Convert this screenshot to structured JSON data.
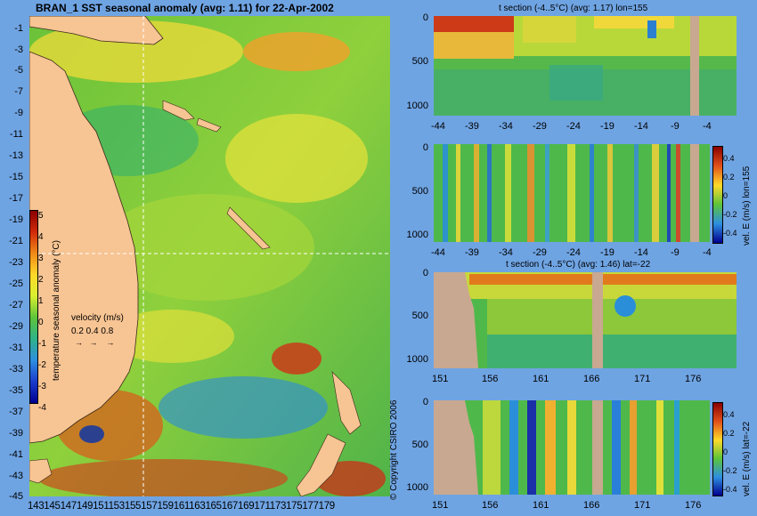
{
  "map": {
    "title": "BRAN_1 SST seasonal anomaly (avg: 1.11) for 22-Apr-2002",
    "lat_ticks": [
      "-1",
      "-3",
      "-5",
      "-7",
      "-9",
      "-11",
      "-13",
      "-15",
      "-17",
      "-19",
      "-21",
      "-23",
      "-25",
      "-27",
      "-29",
      "-31",
      "-33",
      "-35",
      "-37",
      "-39",
      "-41",
      "-43",
      "-45"
    ],
    "lon_ticks_text": "143145147149151153155157159161163165167169171173175177179",
    "colorbar": {
      "label": "temperature seasonal anomaly (°C)",
      "ticks": [
        "5",
        "4",
        "3",
        "2",
        "1",
        "0",
        "-1",
        "-2",
        "-3",
        "-4"
      ]
    },
    "velocity_legend": {
      "title": "velocity (m/s)",
      "scale": "0.2 0.4 0.8"
    },
    "copyright": "© Copyright CSIRO 2006"
  },
  "panels": [
    {
      "id": "t-lon",
      "title": "t section (-4..5°C) (avg: 1.17) lon=155",
      "x_ticks": [
        "-44",
        "-39",
        "-34",
        "-29",
        "-24",
        "-19",
        "-14",
        "-9",
        "-4"
      ],
      "y_ticks": [
        "0",
        "500",
        "1000"
      ]
    },
    {
      "id": "v-lon",
      "title": "",
      "x_ticks": [
        "-44",
        "-39",
        "-34",
        "-29",
        "-24",
        "-19",
        "-14",
        "-9",
        "-4"
      ],
      "y_ticks": [
        "0",
        "500",
        "1000"
      ],
      "cbar_label": "vel. E (m/s) lon=155",
      "cbar_ticks": [
        "0.4",
        "0.2",
        "0",
        "-0.2",
        "-0.4"
      ]
    },
    {
      "id": "t-lat",
      "title": "t section (-4..5°C) (avg: 1.46) lat=-22",
      "x_ticks": [
        "151",
        "156",
        "161",
        "166",
        "171",
        "176"
      ],
      "y_ticks": [
        "0",
        "500",
        "1000"
      ]
    },
    {
      "id": "v-lat",
      "title": "",
      "x_ticks": [
        "151",
        "156",
        "161",
        "166",
        "171",
        "176"
      ],
      "y_ticks": [
        "0",
        "500",
        "1000"
      ],
      "cbar_label": "vel. E (m/s) lat=-22",
      "cbar_ticks": [
        "0.4",
        "0.2",
        "0",
        "-0.2",
        "-0.4"
      ]
    }
  ],
  "chart_data": [
    {
      "type": "heatmap",
      "title": "BRAN_1 SST seasonal anomaly (avg: 1.11) for 22-Apr-2002",
      "xlabel": "",
      "ylabel": "",
      "xlim": [
        143,
        180
      ],
      "ylim": [
        -45,
        0
      ],
      "colorbar_range": [
        -4,
        5
      ],
      "colorbar_label": "temperature seasonal anomaly (°C)"
    },
    {
      "type": "heatmap",
      "title": "t section (-4..5°C) (avg: 1.17) lon=155",
      "xlim": [
        -45,
        0
      ],
      "ylim": [
        1050,
        0
      ]
    },
    {
      "type": "heatmap",
      "title": "",
      "xlim": [
        -45,
        0
      ],
      "ylim": [
        1050,
        0
      ],
      "colorbar_range": [
        -0.4,
        0.4
      ],
      "colorbar_label": "vel. E (m/s) lon=155"
    },
    {
      "type": "heatmap",
      "title": "t section (-4..5°C) (avg: 1.46) lat=-22",
      "xlim": [
        150,
        180
      ],
      "ylim": [
        1050,
        0
      ]
    },
    {
      "type": "heatmap",
      "title": "",
      "xlim": [
        150,
        180
      ],
      "ylim": [
        1050,
        0
      ],
      "colorbar_range": [
        -0.4,
        0.4
      ],
      "colorbar_label": "vel. E (m/s) lat=-22"
    }
  ]
}
